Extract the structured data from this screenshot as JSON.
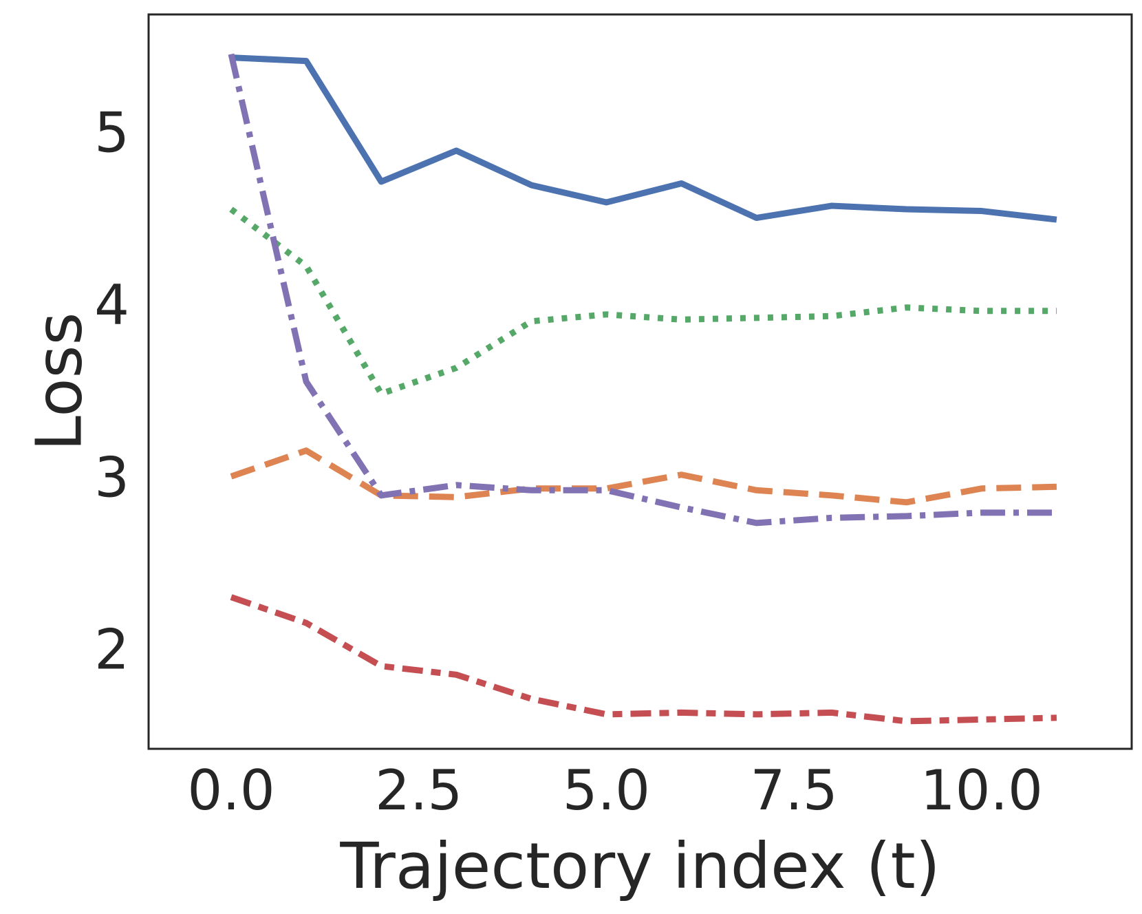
{
  "chart_data": {
    "type": "line",
    "title": "",
    "xlabel": "Trajectory index (t)",
    "ylabel": "Loss",
    "xlim": [
      -1.1,
      12.0
    ],
    "ylim": [
      1.42,
      5.68
    ],
    "xticks": [
      0.0,
      2.5,
      5.0,
      7.5,
      10.0
    ],
    "xtick_labels": [
      "0.0",
      "2.5",
      "5.0",
      "7.5",
      "10.0"
    ],
    "yticks": [
      2,
      3,
      4,
      5
    ],
    "ytick_labels": [
      "2",
      "3",
      "4",
      "5"
    ],
    "grid": false,
    "legend": "none",
    "x": [
      0,
      1,
      2,
      3,
      4,
      5,
      6,
      7,
      8,
      9,
      10,
      11
    ],
    "series": [
      {
        "name": "solid",
        "color": "#4c72b0",
        "style": "solid",
        "values": [
          5.43,
          5.41,
          4.71,
          4.89,
          4.69,
          4.59,
          4.7,
          4.5,
          4.57,
          4.55,
          4.54,
          4.49
        ]
      },
      {
        "name": "dashed",
        "color": "#dd8452",
        "style": "dashed",
        "values": [
          3.0,
          3.15,
          2.89,
          2.88,
          2.93,
          2.93,
          3.01,
          2.92,
          2.89,
          2.85,
          2.93,
          2.94
        ]
      },
      {
        "name": "dotted",
        "color": "#55a868",
        "style": "dotted",
        "values": [
          4.55,
          4.22,
          3.48,
          3.63,
          3.9,
          3.94,
          3.91,
          3.92,
          3.93,
          3.98,
          3.96,
          3.96
        ]
      },
      {
        "name": "dashdotted",
        "color": "#c44e52",
        "style": "dashdot-long",
        "values": [
          2.3,
          2.15,
          1.9,
          1.85,
          1.71,
          1.62,
          1.63,
          1.62,
          1.63,
          1.58,
          1.59,
          1.6
        ]
      },
      {
        "name": "dashdot",
        "color": "#8172b3",
        "style": "dashdot",
        "values": [
          5.45,
          3.55,
          2.89,
          2.95,
          2.92,
          2.92,
          2.82,
          2.73,
          2.76,
          2.77,
          2.79,
          2.79
        ]
      }
    ]
  }
}
